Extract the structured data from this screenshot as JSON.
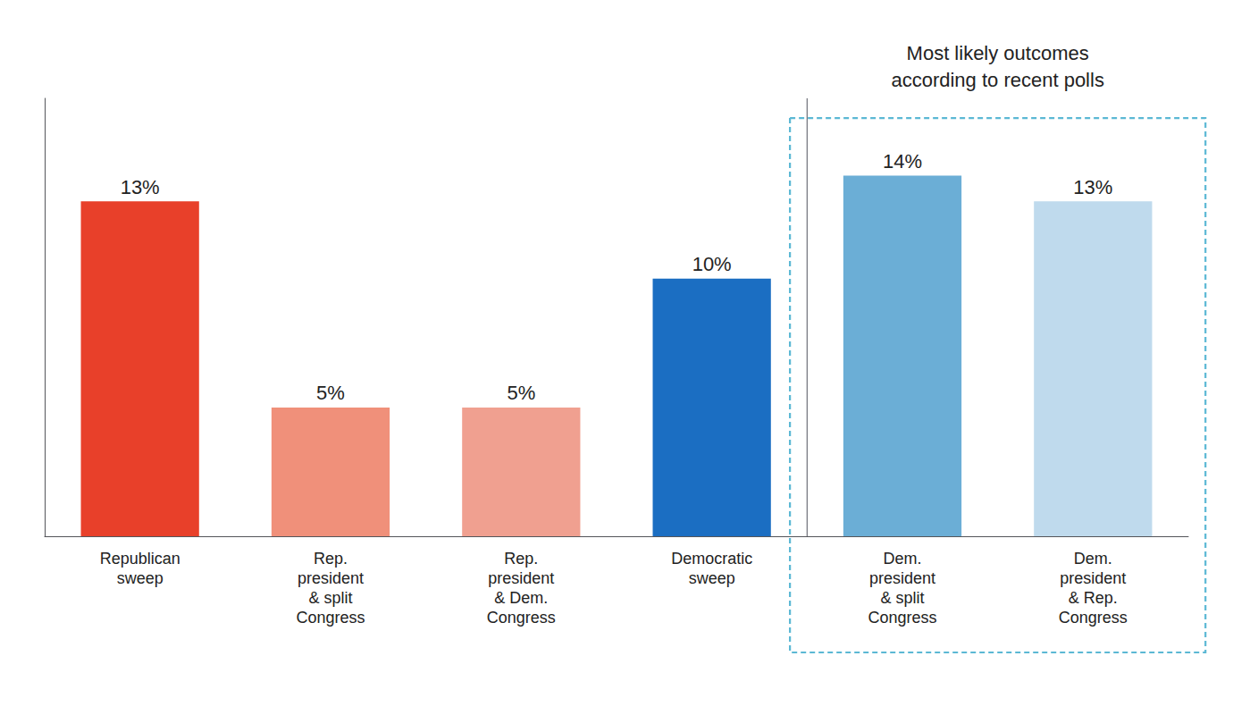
{
  "chart_data": {
    "type": "bar",
    "categories": [
      "Republican\nsweep",
      "Rep.\npresident\n& split\nCongress",
      "Rep.\npresident\n& Dem.\nCongress",
      "Democratic\nsweep",
      "Dem.\npresident\n& split\nCongress",
      "Dem.\npresident\n& Rep.\nCongress"
    ],
    "values": [
      13,
      5,
      5,
      10,
      14,
      13
    ],
    "value_labels": [
      "13%",
      "5%",
      "5%",
      "10%",
      "14%",
      "13%"
    ],
    "colors": [
      "#E8402A",
      "#F0907A",
      "#F0A090",
      "#1B6EC2",
      "#6BAED6",
      "#BFDAED"
    ],
    "ylim": [
      0,
      17
    ],
    "data_labels": true,
    "tick_labels": "x",
    "grid": false,
    "annotations": [
      {
        "text": "Most likely outcomes\naccording to recent polls",
        "categories": [
          "Dem.\npresident\n& split\nCongress",
          "Dem.\npresident\n& Rep.\nCongress"
        ],
        "color": "#5BB8D4"
      }
    ]
  }
}
